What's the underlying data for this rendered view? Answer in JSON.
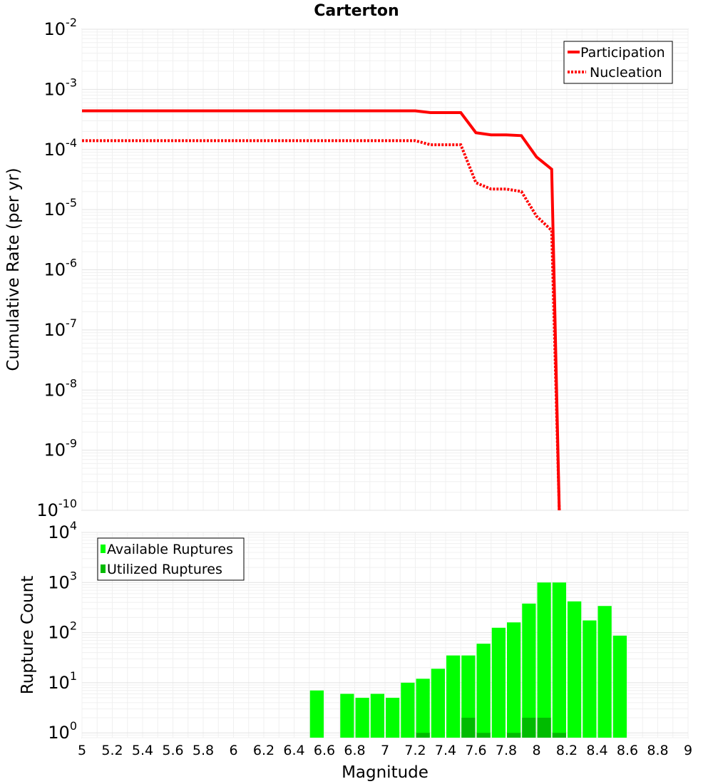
{
  "chart_data": [
    {
      "type": "line",
      "title": "Carterton",
      "ylabel": "Cumulative Rate (per yr)",
      "yscale": "log",
      "ylim": [
        1e-10,
        0.01
      ],
      "xlim": [
        5,
        9
      ],
      "y_ticks": [
        {
          "base": "10",
          "exp": "-2"
        },
        {
          "base": "10",
          "exp": "-3"
        },
        {
          "base": "10",
          "exp": "-4"
        },
        {
          "base": "10",
          "exp": "-5"
        },
        {
          "base": "10",
          "exp": "-6"
        },
        {
          "base": "10",
          "exp": "-7"
        },
        {
          "base": "10",
          "exp": "-8"
        },
        {
          "base": "10",
          "exp": "-9"
        },
        {
          "base": "10",
          "exp": "-10"
        }
      ],
      "legend_position": "top-right",
      "series": [
        {
          "name": "Participation",
          "color": "#ff0000",
          "style": "solid",
          "x": [
            5.0,
            7.2,
            7.3,
            7.5,
            7.6,
            7.7,
            7.8,
            7.9,
            8.0,
            8.1,
            8.15
          ],
          "y": [
            0.00044,
            0.00044,
            0.00041,
            0.00041,
            0.00019,
            0.000175,
            0.000175,
            0.00017,
            7.5e-05,
            4.7e-05,
            1e-10
          ]
        },
        {
          "name": "Nucleation",
          "color": "#ff0000",
          "style": "dotted",
          "x": [
            5.0,
            7.2,
            7.3,
            7.5,
            7.6,
            7.7,
            7.8,
            7.9,
            8.0,
            8.1,
            8.15
          ],
          "y": [
            0.00014,
            0.00014,
            0.00012,
            0.00012,
            2.8e-05,
            2.2e-05,
            2.2e-05,
            2e-05,
            7.8e-06,
            4.5e-06,
            1e-10
          ]
        }
      ]
    },
    {
      "type": "bar",
      "ylabel": "Rupture Count",
      "xlabel": "Magnitude",
      "yscale": "log",
      "ylim": [
        0.8,
        10000
      ],
      "xlim": [
        5,
        9
      ],
      "x_ticks": [
        "5",
        "5.2",
        "5.4",
        "5.6",
        "5.8",
        "6",
        "6.2",
        "6.4",
        "6.6",
        "6.8",
        "7",
        "7.2",
        "7.4",
        "7.6",
        "7.8",
        "8",
        "8.2",
        "8.4",
        "8.6",
        "8.8",
        "9"
      ],
      "y_ticks": [
        {
          "base": "10",
          "exp": "0"
        },
        {
          "base": "10",
          "exp": "1"
        },
        {
          "base": "10",
          "exp": "2"
        },
        {
          "base": "10",
          "exp": "3"
        },
        {
          "base": "10",
          "exp": "4"
        }
      ],
      "legend_position": "top-left",
      "series": [
        {
          "name": "Available Ruptures",
          "color": "#00ff00",
          "x": [
            6.55,
            6.75,
            6.85,
            6.95,
            7.05,
            7.15,
            7.25,
            7.35,
            7.45,
            7.55,
            7.65,
            7.75,
            7.85,
            7.95,
            8.05,
            8.15,
            8.25,
            8.35,
            8.45,
            8.55
          ],
          "values": [
            7,
            6,
            5,
            6,
            5,
            10,
            12,
            19,
            35,
            35,
            60,
            125,
            160,
            380,
            1000,
            1000,
            420,
            175,
            340,
            87
          ]
        },
        {
          "name": "Utilized Ruptures",
          "color": "#00bb00",
          "x": [
            7.25,
            7.55,
            7.65,
            7.85,
            7.95,
            8.05,
            8.15
          ],
          "values": [
            1,
            2,
            1,
            1,
            2,
            2,
            1
          ]
        }
      ]
    }
  ]
}
